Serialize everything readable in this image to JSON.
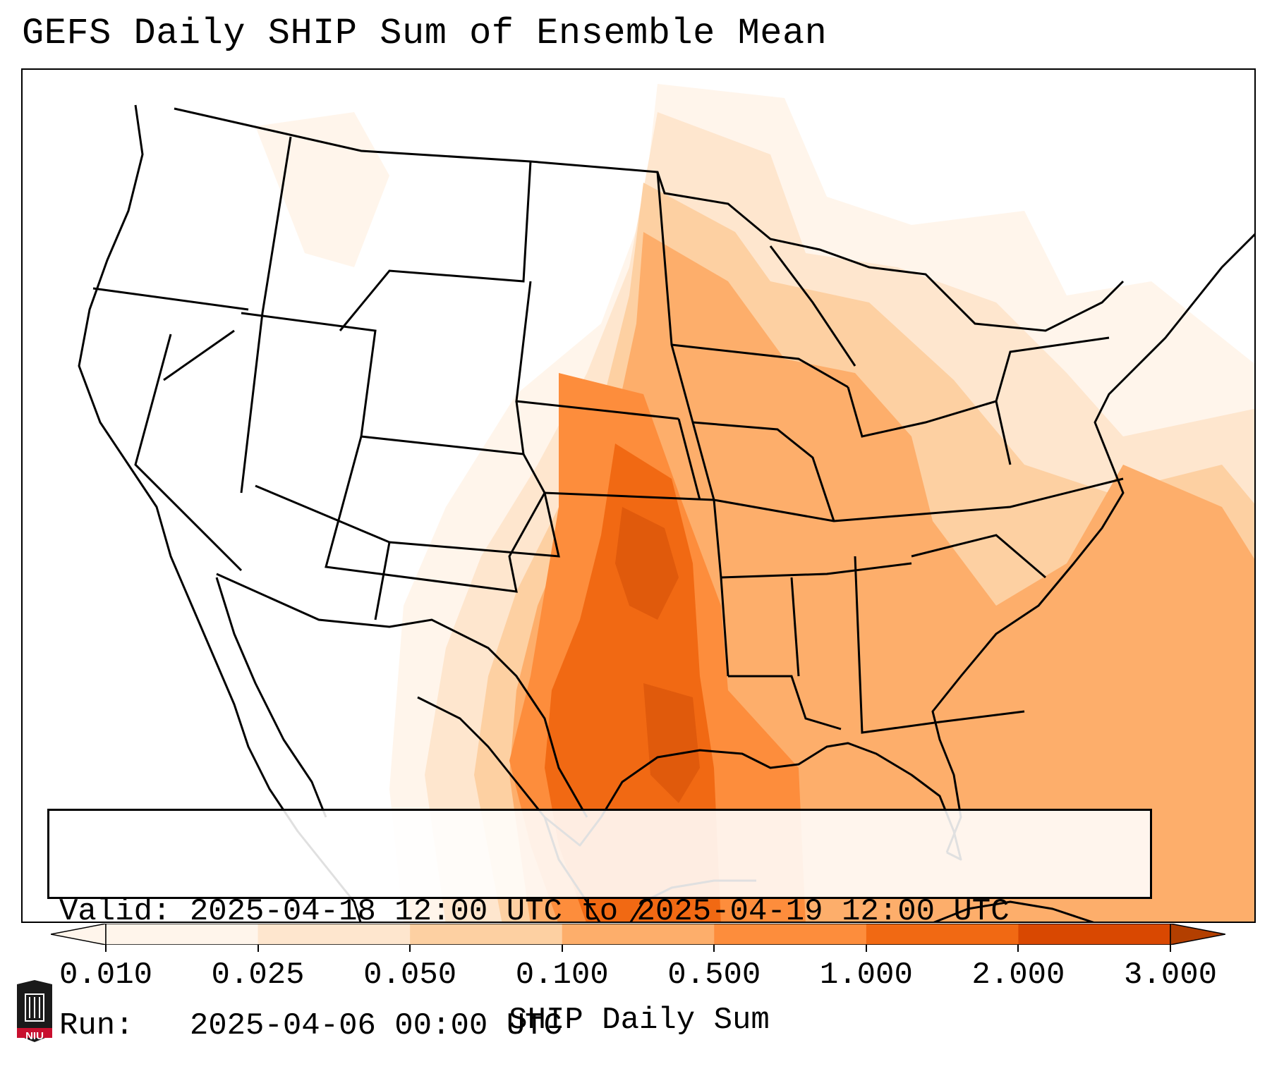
{
  "title": "GEFS Daily SHIP Sum of Ensemble Mean",
  "info": {
    "valid_line": "Valid: 2025-04-18 12:00 UTC to 2025-04-19 12:00 UTC",
    "run_line": "Run:   2025-04-06 00:00 UTC"
  },
  "colorbar": {
    "label": "SHIP Daily Sum",
    "ticks": [
      "0.010",
      "0.025",
      "0.050",
      "0.100",
      "0.500",
      "1.000",
      "2.000",
      "3.000"
    ],
    "colors": [
      "#fff5eb",
      "#fee6ce",
      "#fdd0a2",
      "#fdae6b",
      "#fd8d3c",
      "#f16913",
      "#d94801"
    ],
    "extend": "both"
  },
  "logo": {
    "text": "NIU",
    "colors": {
      "shield": "#1a1a1a",
      "band": "#c8102e"
    }
  }
}
